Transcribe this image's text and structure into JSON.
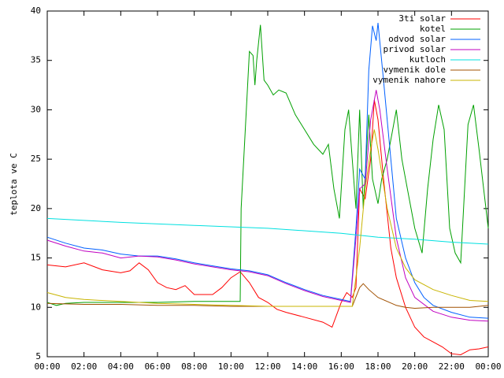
{
  "chart_data": {
    "type": "line",
    "ylabel": "teplota ve C",
    "xlim": [
      0,
      24
    ],
    "ylim": [
      5,
      40
    ],
    "xticks": [
      {
        "value": 0,
        "label": "00:00"
      },
      {
        "value": 2,
        "label": "02:00"
      },
      {
        "value": 4,
        "label": "04:00"
      },
      {
        "value": 6,
        "label": "06:00"
      },
      {
        "value": 8,
        "label": "08:00"
      },
      {
        "value": 10,
        "label": "10:00"
      },
      {
        "value": 12,
        "label": "12:00"
      },
      {
        "value": 14,
        "label": "14:00"
      },
      {
        "value": 16,
        "label": "16:00"
      },
      {
        "value": 18,
        "label": "18:00"
      },
      {
        "value": 20,
        "label": "20:00"
      },
      {
        "value": 22,
        "label": "22:00"
      },
      {
        "value": 24,
        "label": "00:00"
      }
    ],
    "yticks": [
      5,
      10,
      15,
      20,
      25,
      30,
      35,
      40
    ],
    "legend": "top-right",
    "series": [
      {
        "name": "3ti solar",
        "color": "#ff0000",
        "x": [
          0,
          1,
          2,
          3,
          4,
          4.5,
          5,
          5.5,
          6,
          6.5,
          7,
          7.5,
          8,
          9,
          9.5,
          10,
          10.5,
          11,
          11.5,
          12,
          12.5,
          13,
          14,
          15,
          15.5,
          16,
          16.3,
          16.6,
          16.8,
          17,
          17.3,
          17.6,
          17.8,
          18,
          18.3,
          18.7,
          19,
          19.5,
          20,
          20.5,
          21,
          21.5,
          22,
          22.5,
          23,
          23.5,
          24
        ],
        "values": [
          14.3,
          14.1,
          14.5,
          13.8,
          13.5,
          13.7,
          14.5,
          13.8,
          12.5,
          12,
          11.8,
          12.2,
          11.3,
          11.3,
          12,
          13,
          13.6,
          12.5,
          11,
          10.5,
          9.8,
          9.5,
          9,
          8.5,
          8,
          10.5,
          11.5,
          11,
          12,
          22,
          21,
          25,
          31,
          29,
          23,
          16,
          13,
          10,
          8,
          7,
          6.5,
          6,
          5.3,
          5.2,
          5.7,
          5.8,
          6
        ]
      },
      {
        "name": "kotel",
        "color": "#00a000",
        "x": [
          0,
          0.5,
          1,
          2,
          4,
          6,
          8,
          10,
          10.5,
          10.55,
          11,
          11.2,
          11.3,
          11.4,
          11.6,
          11.8,
          12,
          12.3,
          12.6,
          13,
          13.5,
          14,
          14.5,
          15,
          15.3,
          15.6,
          15.9,
          16.2,
          16.4,
          16.6,
          16.8,
          17,
          17.2,
          17.5,
          17.7,
          18,
          18.2,
          18.5,
          18.8,
          19,
          19.3,
          19.6,
          20,
          20.4,
          20.7,
          21,
          21.3,
          21.6,
          21.9,
          22.2,
          22.5,
          22.9,
          23.2,
          23.5,
          24
        ],
        "values": [
          10.5,
          10.2,
          10.4,
          10.5,
          10.5,
          10.5,
          10.6,
          10.6,
          10.6,
          20,
          35.9,
          35.5,
          32.5,
          35,
          38.6,
          33,
          32.5,
          31.5,
          32,
          31.7,
          29.5,
          28,
          26.5,
          25.5,
          26.5,
          22,
          19,
          28,
          30,
          25,
          20,
          30,
          20,
          29.5,
          23,
          20.5,
          23,
          25,
          28,
          30,
          25,
          22,
          18,
          15.5,
          22,
          27,
          30.5,
          28,
          18,
          15.5,
          14.5,
          28.5,
          30.5,
          26,
          18
        ]
      },
      {
        "name": "odvod solar",
        "color": "#0060ff",
        "x": [
          0,
          1,
          2,
          3,
          4,
          5,
          6,
          7,
          8,
          9,
          10,
          11,
          12,
          13,
          14,
          15,
          16,
          16.5,
          16.8,
          17,
          17.3,
          17.5,
          17.7,
          17.9,
          18,
          18.3,
          18.7,
          19,
          19.5,
          20,
          20.5,
          21,
          22,
          23,
          24
        ],
        "values": [
          17.1,
          16.5,
          16,
          15.8,
          15.4,
          15.2,
          15.2,
          14.9,
          14.5,
          14.2,
          13.9,
          13.7,
          13.3,
          12.5,
          11.8,
          11.2,
          10.8,
          10.6,
          18,
          24,
          23,
          34,
          38.5,
          37,
          38.8,
          33,
          25,
          19,
          15,
          12.5,
          11,
          10.2,
          9.5,
          9,
          8.9
        ]
      },
      {
        "name": "privod solar",
        "color": "#c000c0",
        "x": [
          0,
          1,
          2,
          3,
          4,
          5,
          6,
          7,
          8,
          9,
          10,
          11,
          12,
          13,
          14,
          15,
          16,
          16.5,
          16.8,
          17,
          17.3,
          17.6,
          17.9,
          18.1,
          18.5,
          19,
          19.5,
          20,
          21,
          22,
          23,
          24
        ],
        "values": [
          16.8,
          16.2,
          15.7,
          15.5,
          15,
          15.2,
          15.1,
          14.8,
          14.4,
          14.1,
          13.8,
          13.6,
          13.2,
          12.4,
          11.7,
          11.1,
          10.7,
          10.5,
          17,
          22,
          22.5,
          29,
          32,
          30,
          24,
          17,
          13,
          11,
          9.6,
          9,
          8.7,
          8.6
        ]
      },
      {
        "name": "kutloch",
        "color": "#00e0e0",
        "x": [
          0,
          4,
          8,
          12,
          16,
          18,
          20,
          22,
          24
        ],
        "values": [
          19,
          18.6,
          18.3,
          18,
          17.5,
          17.1,
          16.9,
          16.6,
          16.4
        ]
      },
      {
        "name": "vymenik dole",
        "color": "#a05000",
        "x": [
          0,
          2,
          4,
          6,
          8,
          10,
          12,
          14,
          16,
          16.6,
          17,
          17.2,
          17.5,
          18,
          19,
          19.5,
          20,
          21,
          22,
          23,
          24
        ],
        "values": [
          10.4,
          10.3,
          10.3,
          10.2,
          10.2,
          10.1,
          10.1,
          10.1,
          10.1,
          10.1,
          12,
          12.4,
          11.8,
          11,
          10.2,
          10,
          9.9,
          10,
          10,
          10,
          10.2
        ]
      },
      {
        "name": "vymenik nahore",
        "color": "#c8b400",
        "x": [
          0,
          1,
          2,
          4,
          6,
          8,
          10,
          12,
          14,
          16,
          16.6,
          17,
          17.3,
          17.6,
          17.8,
          18,
          18.5,
          19,
          19.5,
          20,
          21,
          22,
          23,
          24
        ],
        "values": [
          11.5,
          11,
          10.8,
          10.6,
          10.4,
          10.3,
          10.2,
          10.1,
          10.1,
          10.1,
          10.1,
          16,
          22,
          26,
          28,
          26,
          20,
          16,
          14,
          12.8,
          11.8,
          11.2,
          10.7,
          10.6
        ]
      }
    ]
  }
}
